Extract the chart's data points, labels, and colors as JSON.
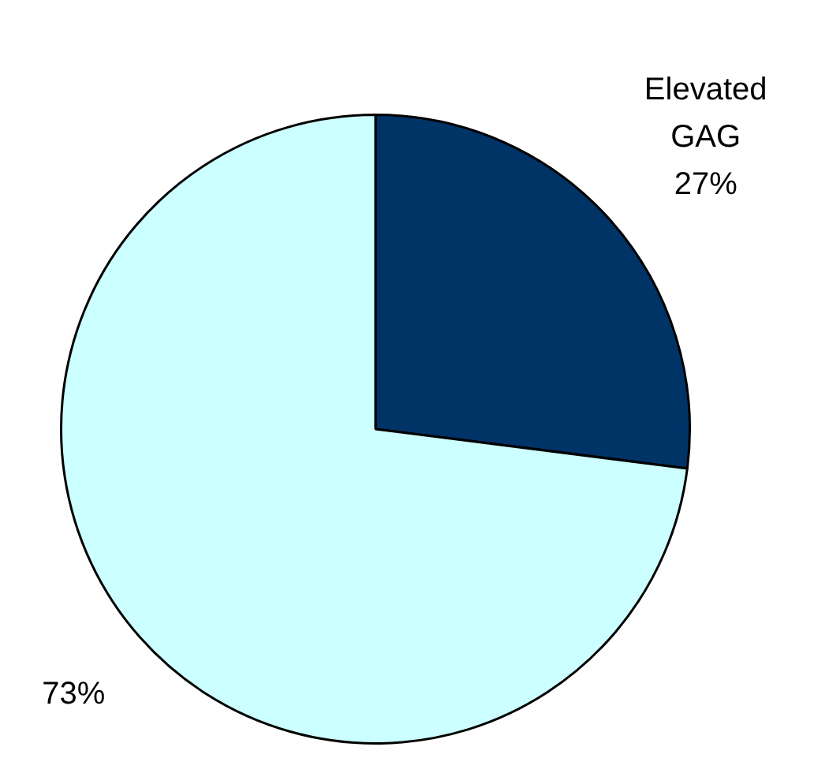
{
  "chart_data": {
    "type": "pie",
    "categories": [
      "Elevated GAG",
      null
    ],
    "values": [
      27,
      73
    ],
    "colors": [
      "#003366",
      "#ccffff"
    ],
    "value_labels": [
      "27%",
      "73%"
    ],
    "legend": false
  }
}
